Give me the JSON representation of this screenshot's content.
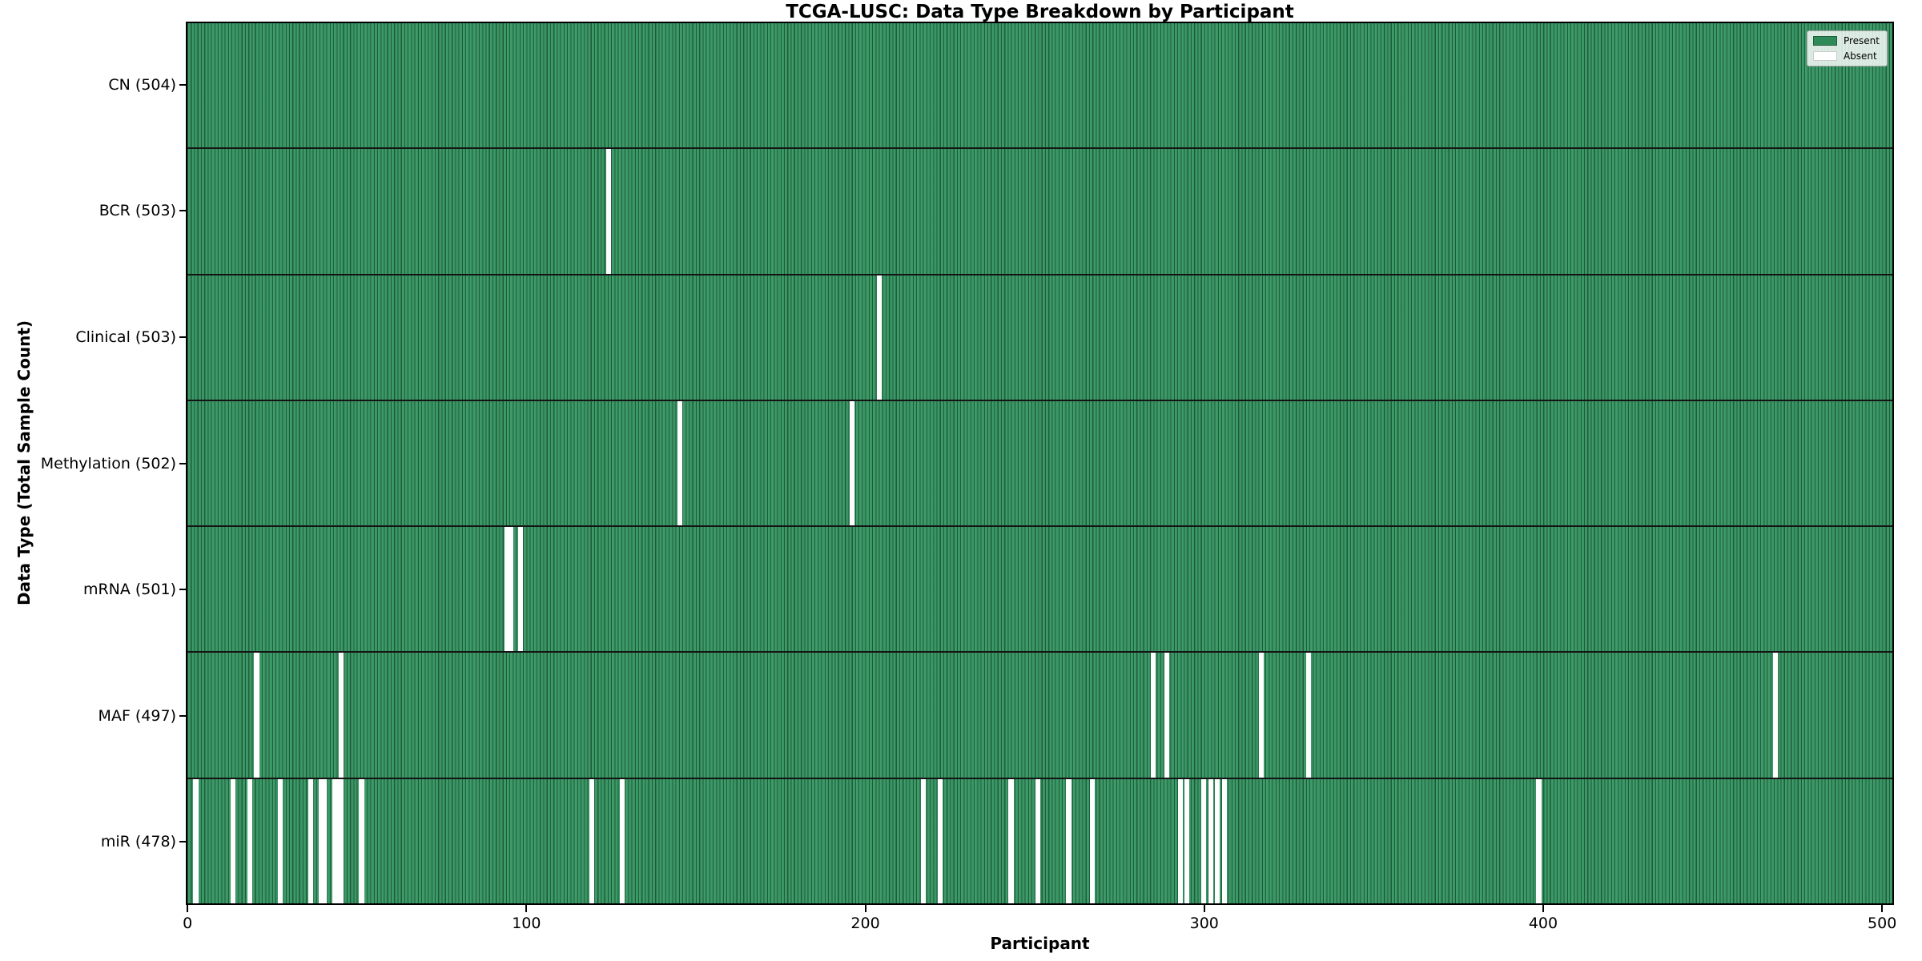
{
  "chart_data": {
    "type": "heatmap",
    "title": "TCGA-LUSC: Data Type Breakdown by Participant",
    "xlabel": "Participant",
    "ylabel": "Data Type (Total Sample Count)",
    "n_participants": 504,
    "x_ticks": [
      0,
      100,
      200,
      300,
      400,
      500
    ],
    "xlim": [
      0,
      504
    ],
    "grid": false,
    "legend_position": "upper right",
    "legend": [
      {
        "label": "Present",
        "color": "#2e8b57"
      },
      {
        "label": "Absent",
        "color": "#ffffff"
      }
    ],
    "colors": {
      "present_fill": "#2e8b57",
      "bar_edge": "#1f5c39",
      "absent_fill": "#ffffff",
      "row_separator": "#141414"
    },
    "rows": [
      {
        "label": "CN (504)",
        "total": 504,
        "absent": []
      },
      {
        "label": "BCR (503)",
        "total": 503,
        "absent": [
          124
        ]
      },
      {
        "label": "Clinical (503)",
        "total": 503,
        "absent": [
          204
        ]
      },
      {
        "label": "Methylation (502)",
        "total": 502,
        "absent": [
          145,
          196
        ]
      },
      {
        "label": "mRNA (501)",
        "total": 501,
        "absent": [
          94,
          95,
          98
        ]
      },
      {
        "label": "MAF (497)",
        "total": 497,
        "absent": [
          20,
          45,
          285,
          289,
          317,
          331,
          469
        ]
      },
      {
        "label": "miR (478)",
        "total": 478,
        "absent": [
          2,
          13,
          18,
          27,
          36,
          39,
          40,
          43,
          44,
          45,
          51,
          119,
          128,
          217,
          222,
          243,
          251,
          260,
          267,
          293,
          295,
          300,
          302,
          304,
          306,
          399
        ]
      }
    ]
  }
}
